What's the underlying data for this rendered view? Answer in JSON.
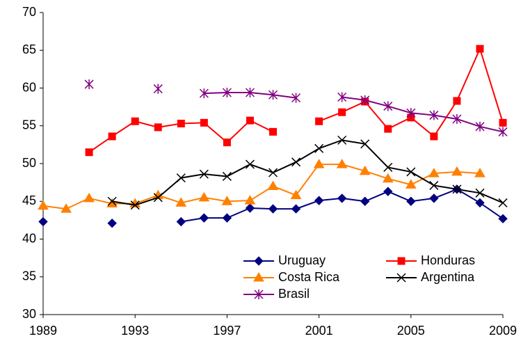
{
  "chart_data": {
    "type": "line",
    "x": [
      1989,
      1990,
      1991,
      1992,
      1993,
      1994,
      1995,
      1996,
      1997,
      1998,
      1999,
      2000,
      2001,
      2002,
      2003,
      2004,
      2005,
      2006,
      2007,
      2008,
      2009
    ],
    "xlim": [
      1989,
      2009
    ],
    "xticks": [
      1989,
      1993,
      1997,
      2001,
      2005,
      2009
    ],
    "ylim": [
      30,
      70
    ],
    "yticks": [
      30,
      35,
      40,
      45,
      50,
      55,
      60,
      65,
      70
    ],
    "grid": false,
    "legend": "lower right",
    "series": [
      {
        "name": "Uruguay",
        "color": "#000080",
        "marker": "diamond",
        "values": [
          42.3,
          null,
          null,
          42.1,
          null,
          null,
          42.3,
          42.8,
          42.8,
          44.1,
          44.0,
          44.0,
          45.1,
          45.4,
          45.0,
          46.3,
          45.0,
          45.4,
          46.6,
          44.8,
          42.7
        ]
      },
      {
        "name": "Honduras",
        "color": "#ff0000",
        "marker": "square",
        "values": [
          null,
          null,
          51.5,
          53.6,
          55.6,
          54.8,
          55.3,
          55.4,
          52.8,
          55.7,
          54.2,
          null,
          55.6,
          56.8,
          58.2,
          54.6,
          56.1,
          53.6,
          58.3,
          65.2,
          55.4
        ]
      },
      {
        "name": "Costa Rica",
        "color": "#ff8000",
        "marker": "triangle",
        "values": [
          44.4,
          44.0,
          45.4,
          44.7,
          44.7,
          45.8,
          44.8,
          45.5,
          45.0,
          45.1,
          47.0,
          45.8,
          49.9,
          49.9,
          49.0,
          48.0,
          47.2,
          48.7,
          48.9,
          48.7,
          null
        ]
      },
      {
        "name": "Argentina",
        "color": "#000000",
        "marker": "x",
        "values": [
          null,
          null,
          null,
          45.0,
          44.5,
          45.5,
          48.1,
          48.6,
          48.3,
          49.9,
          48.8,
          50.2,
          52.0,
          53.1,
          52.6,
          49.5,
          48.9,
          47.1,
          46.6,
          46.1,
          44.8
        ]
      },
      {
        "name": "Brasil",
        "color": "#800080",
        "marker": "star",
        "values": [
          null,
          null,
          60.5,
          null,
          null,
          59.9,
          null,
          59.3,
          59.4,
          59.4,
          59.1,
          58.7,
          null,
          58.8,
          58.4,
          57.6,
          56.7,
          56.4,
          55.9,
          54.9,
          54.2
        ]
      }
    ]
  }
}
